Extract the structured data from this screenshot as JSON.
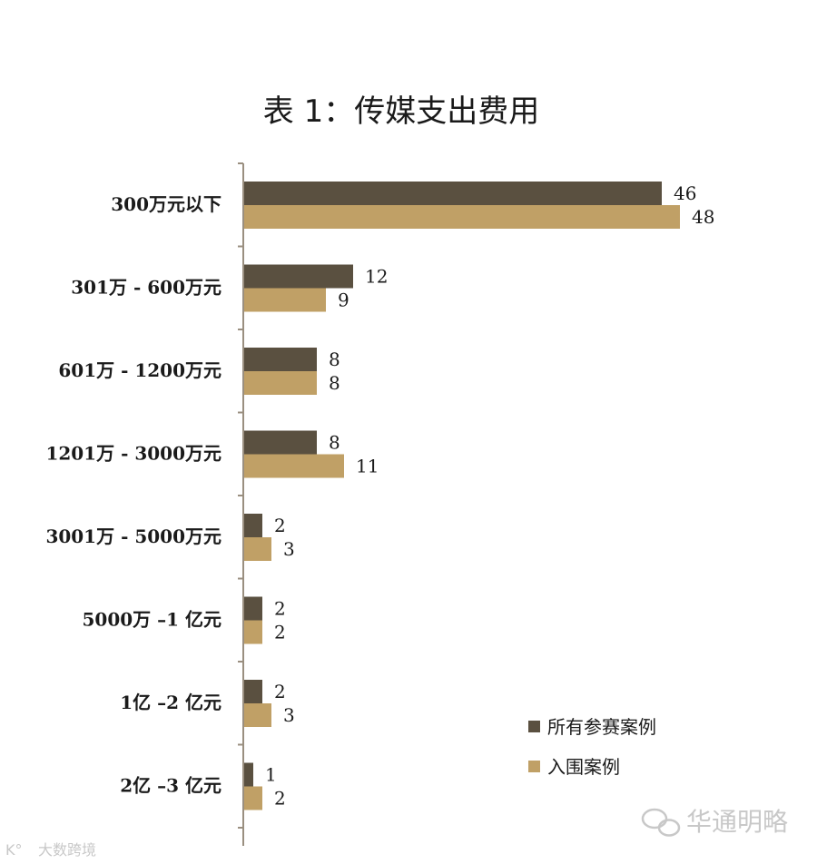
{
  "chart_data": {
    "type": "bar",
    "orientation": "horizontal",
    "title": "表 1：传媒支出费用",
    "categories": [
      "300万元以下",
      "301万 - 600万元",
      "601万 - 1200万元",
      "1201万 - 3000万元",
      "3001万 - 5000万元",
      "5000万 –1 亿元",
      "1亿 –2 亿元",
      "2亿 –3 亿元"
    ],
    "series": [
      {
        "name": "所有参赛案例",
        "values": [
          46,
          12,
          8,
          8,
          2,
          2,
          2,
          1
        ],
        "color": "#5a5040"
      },
      {
        "name": "入围案例",
        "values": [
          48,
          9,
          8,
          11,
          3,
          2,
          3,
          2
        ],
        "color": "#c0a066"
      }
    ],
    "xlim": [
      0,
      60
    ],
    "grid": false,
    "legend_position": "bottom-right",
    "data_labels": true
  },
  "watermarks": {
    "brand": "华通明略",
    "corner": "大数跨境"
  },
  "colors": {
    "axis": "#9a8f80",
    "text": "#1a1a1a",
    "watermark": "#c8c8c8"
  }
}
